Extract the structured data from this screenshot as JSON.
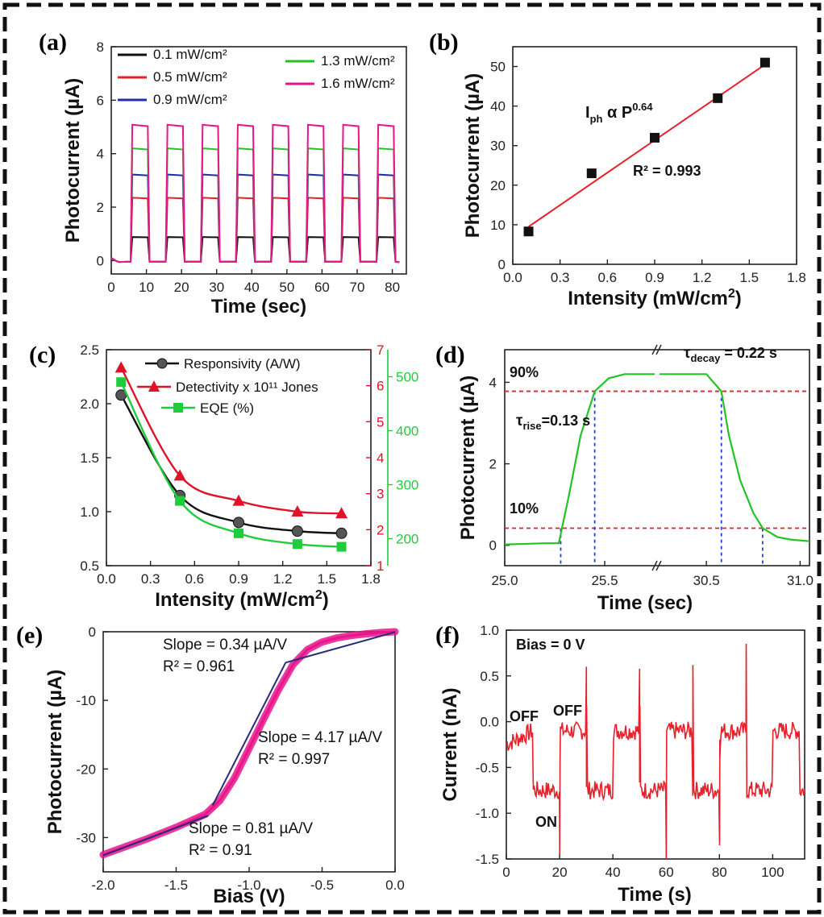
{
  "colors": {
    "black": "#111111",
    "red": "#e8202a",
    "blue": "#1f2ea8",
    "green": "#22c322",
    "magenta": "#e8158c",
    "detectivity": "#e0122a",
    "eqe": "#1fcc3a",
    "guide": "#1f3fd0",
    "threshold": "#e0202a"
  },
  "chart_data": [
    {
      "id": "a",
      "panel": "(a)",
      "type": "line",
      "xlabel": "Time (sec)",
      "ylabel": "Photocurrent (µA)",
      "xlim": [
        0,
        84
      ],
      "ylim": [
        -0.5,
        8
      ],
      "xticks": [
        0,
        10,
        20,
        30,
        40,
        50,
        60,
        70,
        80
      ],
      "yticks": [
        0,
        2,
        4,
        6,
        8
      ],
      "pulse_on": [
        [
          5.5,
          10.5
        ],
        [
          15.5,
          20.5
        ],
        [
          25.5,
          30.5
        ],
        [
          35.5,
          40.5
        ],
        [
          45.5,
          50.5
        ],
        [
          55.5,
          60.5
        ],
        [
          65.5,
          70.5
        ],
        [
          75.5,
          80.5
        ]
      ],
      "series": [
        {
          "name": "0.1 mW/cm²",
          "color": "#111111",
          "high": 0.88
        },
        {
          "name": "0.5 mW/cm²",
          "color": "#e8202a",
          "high": 2.35
        },
        {
          "name": "0.9 mW/cm²",
          "color": "#1f2ea8",
          "high": 3.22
        },
        {
          "name": "1.3 mW/cm²",
          "color": "#22c322",
          "high": 4.2
        },
        {
          "name": "1.6 mW/cm²",
          "color": "#e8158c",
          "high": 5.08
        }
      ]
    },
    {
      "id": "b",
      "panel": "(b)",
      "type": "scatter",
      "xlabel": "Intensity (mW/cm²)",
      "ylabel": "Photocurrent (µA)",
      "xlim": [
        0,
        1.8
      ],
      "ylim": [
        0,
        55
      ],
      "xticks": [
        "0.0",
        "0.3",
        "0.6",
        "0.9",
        "1.2",
        "1.5",
        "1.8"
      ],
      "yticks": [
        0,
        10,
        20,
        30,
        40,
        50
      ],
      "x": [
        0.1,
        0.5,
        0.9,
        1.3,
        1.6
      ],
      "y": [
        8.3,
        23,
        32,
        42,
        51
      ],
      "fit": {
        "x": [
          0.1,
          1.6
        ],
        "y": [
          9.5,
          50.5
        ]
      },
      "annotations": {
        "law_main": "I",
        "law_sub": "ph",
        "law_mid": " α P",
        "law_sup": "0.64",
        "r2": "R² = 0.993"
      }
    },
    {
      "id": "c",
      "panel": "(c)",
      "type": "line",
      "xlabel": "Intensity (mW/cm²)",
      "xlim": [
        0,
        1.8
      ],
      "ylim": [
        0.5,
        2.5
      ],
      "y2lim": [
        1,
        7
      ],
      "y3lim": [
        150,
        550
      ],
      "xticks": [
        "0.0",
        "0.3",
        "0.6",
        "0.9",
        "1.2",
        "1.5",
        "1.8"
      ],
      "yticks": [
        "0.5",
        "1.0",
        "1.5",
        "2.0",
        "2.5"
      ],
      "y2ticks": [
        1,
        2,
        3,
        4,
        5,
        6,
        7
      ],
      "y3ticks": [
        200,
        300,
        400,
        500
      ],
      "series": [
        {
          "name": "Responsivity (A/W)",
          "axis": "y",
          "x": [
            0.1,
            0.5,
            0.9,
            1.3,
            1.6
          ],
          "y": [
            2.08,
            1.15,
            0.9,
            0.82,
            0.8
          ]
        },
        {
          "name": "Detectivity x 10¹¹ Jones",
          "axis": "y2",
          "x": [
            0.1,
            0.5,
            0.9,
            1.3,
            1.6
          ],
          "y": [
            6.5,
            3.5,
            2.8,
            2.5,
            2.45
          ]
        },
        {
          "name": "EQE (%)",
          "axis": "y3",
          "x": [
            0.1,
            0.5,
            0.9,
            1.3,
            1.6
          ],
          "y": [
            490,
            270,
            210,
            190,
            185
          ]
        }
      ]
    },
    {
      "id": "d",
      "panel": "(d)",
      "type": "line",
      "xlabel": "Time (sec)",
      "ylabel": "Photocurrent (µA)",
      "ylim": [
        -0.5,
        4.8
      ],
      "yticks": [
        0,
        2,
        4
      ],
      "xticks": [
        "25.0",
        "25.5",
        "30.5",
        "31.0"
      ],
      "segments": [
        {
          "xlim": [
            25,
            25.75
          ]
        },
        {
          "xlim": [
            30.25,
            31.05
          ]
        }
      ],
      "levels": {
        "high": 4.2,
        "p90": 3.78,
        "p10": 0.42
      },
      "rise": {
        "start": 25.28,
        "end": 25.45
      },
      "decay": {
        "start": 30.58,
        "end": 30.8
      },
      "annotations": {
        "p90": "90%",
        "p10": "10%",
        "rise_tau": "τ",
        "rise_sub": "rise",
        "rise_val": "=0.13 s",
        "decay_tau": "τ",
        "decay_sub": "decay",
        "decay_val": " = 0.22 s"
      }
    },
    {
      "id": "e",
      "panel": "(e)",
      "type": "line",
      "xlabel": "Bias (V)",
      "ylabel": "Photocurrent (µA)",
      "xlim": [
        -2,
        0
      ],
      "ylim": [
        -35,
        0
      ],
      "xticks": [
        "-2.0",
        "-1.5",
        "-1.0",
        "-0.5",
        "0.0"
      ],
      "yticks": [
        0,
        -10,
        -20,
        -30
      ],
      "curve": {
        "x": [
          -2.0,
          -1.7,
          -1.5,
          -1.3,
          -1.2,
          -1.1,
          -1.0,
          -0.9,
          -0.8,
          -0.7,
          -0.6,
          -0.5,
          -0.4,
          -0.3,
          -0.2,
          -0.1,
          0.0
        ],
        "y": [
          -32.5,
          -30.2,
          -28.5,
          -26.6,
          -24.6,
          -21.3,
          -17.0,
          -12.7,
          -8.5,
          -4.8,
          -2.6,
          -1.5,
          -0.9,
          -0.55,
          -0.3,
          -0.12,
          0.0
        ]
      },
      "fits": [
        {
          "x": [
            -2.0,
            -1.28
          ],
          "y": [
            -32.6,
            -26.8
          ]
        },
        {
          "x": [
            -1.25,
            -0.75
          ],
          "y": [
            -25.3,
            -4.5
          ]
        },
        {
          "x": [
            -0.75,
            0.0
          ],
          "y": [
            -4.5,
            -0.05
          ]
        }
      ],
      "annotations": [
        {
          "slope": "Slope = 0.34 µA/V",
          "r2": "R² = 0.961"
        },
        {
          "slope": "Slope = 4.17 µA/V",
          "r2": "R² = 0.997"
        },
        {
          "slope": "Slope = 0.81 µA/V",
          "r2": "R² = 0.91"
        }
      ]
    },
    {
      "id": "f",
      "panel": "(f)",
      "type": "line",
      "xlabel": "Time (s)",
      "ylabel": "Current (nA)",
      "xlim": [
        0,
        112
      ],
      "ylim": [
        -1.5,
        1.0
      ],
      "xticks": [
        0,
        20,
        40,
        60,
        80,
        100
      ],
      "yticks": [
        "1.0",
        "0.5",
        "0.0",
        "-0.5",
        "-1.0",
        "-1.5"
      ],
      "off_level": -0.1,
      "on_level": -0.75,
      "edges": [
        10,
        20,
        30,
        40,
        50,
        60,
        70,
        80,
        90,
        100,
        110
      ],
      "spikes": {
        "up": [
          0.6,
          0.58,
          0.62,
          0.85
        ],
        "down": [
          -1.45,
          -1.5,
          -1.35
        ]
      },
      "annotations": {
        "bias": "Bias = 0 V",
        "off1": "OFF",
        "off2": "OFF",
        "on": "ON"
      }
    }
  ]
}
